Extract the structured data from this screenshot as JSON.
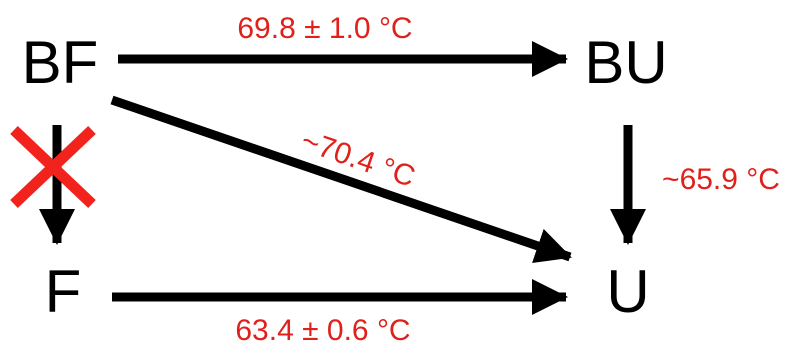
{
  "nodes": {
    "bf": "BF",
    "bu": "BU",
    "f": "F",
    "u": "U"
  },
  "edges": {
    "bf_to_bu": "69.8 ± 1.0 °C",
    "bf_to_u": "~70.4 °C",
    "bu_to_u": "~65.9 °C",
    "f_to_u": "63.4 ± 0.6 °C"
  },
  "blocked_transition": {
    "from": "BF",
    "to": "F",
    "marker": "red-cross"
  },
  "colors": {
    "arrow": "#000000",
    "label": "#e0201b",
    "cross": "#f2231d"
  }
}
